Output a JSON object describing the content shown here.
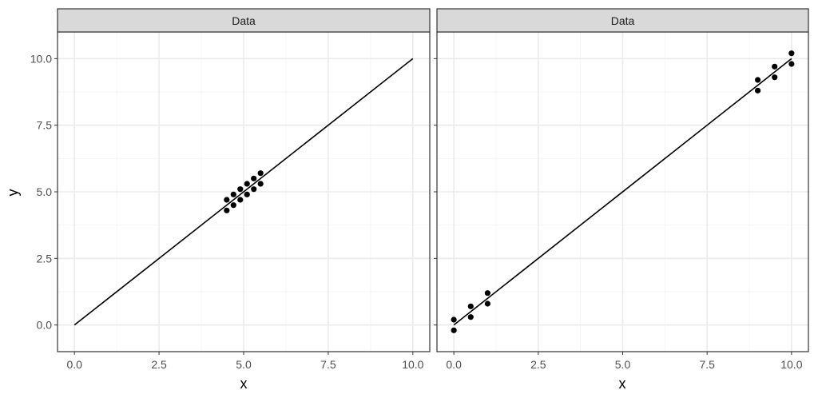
{
  "chart_data": {
    "type": "scatter",
    "facet_label": "Data",
    "xlabel": "x",
    "ylabel": "y",
    "xlim": [
      -0.5,
      10.5
    ],
    "ylim": [
      -1.0,
      11.0
    ],
    "x_ticks": [
      0.0,
      2.5,
      5.0,
      7.5,
      10.0
    ],
    "x_tick_labels": [
      "0.0",
      "2.5",
      "5.0",
      "7.5",
      "10.0"
    ],
    "y_ticks": [
      0.0,
      2.5,
      5.0,
      7.5,
      10.0
    ],
    "y_tick_labels": [
      "0.0",
      "2.5",
      "5.0",
      "7.5",
      "10.0"
    ],
    "grid": true,
    "colors": {
      "strip_fill": "#d9d9d9",
      "panel_border": "#333333",
      "grid_major": "#ebebeb",
      "grid_minor": "#f5f5f5",
      "points": "#000000",
      "line": "#000000"
    },
    "panels": [
      {
        "strip": "Data",
        "points": [
          {
            "x": 4.5,
            "y": 4.7
          },
          {
            "x": 4.5,
            "y": 4.3
          },
          {
            "x": 4.7,
            "y": 4.9
          },
          {
            "x": 4.7,
            "y": 4.5
          },
          {
            "x": 4.9,
            "y": 5.1
          },
          {
            "x": 4.9,
            "y": 4.7
          },
          {
            "x": 5.1,
            "y": 5.3
          },
          {
            "x": 5.1,
            "y": 4.9
          },
          {
            "x": 5.3,
            "y": 5.5
          },
          {
            "x": 5.3,
            "y": 5.1
          },
          {
            "x": 5.5,
            "y": 5.7
          },
          {
            "x": 5.5,
            "y": 5.3
          }
        ],
        "line": [
          {
            "x": 0.0,
            "y": 0.0
          },
          {
            "x": 10.0,
            "y": 10.0
          }
        ]
      },
      {
        "strip": "Data",
        "points": [
          {
            "x": 0.0,
            "y": 0.2
          },
          {
            "x": 0.0,
            "y": -0.2
          },
          {
            "x": 0.5,
            "y": 0.7
          },
          {
            "x": 0.5,
            "y": 0.3
          },
          {
            "x": 1.0,
            "y": 1.2
          },
          {
            "x": 1.0,
            "y": 0.8
          },
          {
            "x": 9.0,
            "y": 9.2
          },
          {
            "x": 9.0,
            "y": 8.8
          },
          {
            "x": 9.5,
            "y": 9.7
          },
          {
            "x": 9.5,
            "y": 9.3
          },
          {
            "x": 10.0,
            "y": 10.2
          },
          {
            "x": 10.0,
            "y": 9.8
          }
        ],
        "line": [
          {
            "x": 0.0,
            "y": 0.0
          },
          {
            "x": 10.0,
            "y": 10.0
          }
        ]
      }
    ]
  }
}
